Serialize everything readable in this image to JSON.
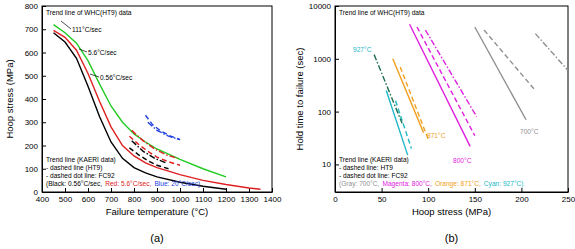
{
  "chart_data": [
    {
      "type": "line",
      "title": "(a)",
      "xlabel": "Failure temperature (°C)",
      "ylabel": "Hoop stress (MPa)",
      "xlim": [
        400,
        1400
      ],
      "ylim": [
        0,
        800
      ],
      "xticks": [
        400,
        500,
        600,
        700,
        800,
        900,
        1000,
        1100,
        1200,
        1300,
        1400
      ],
      "yticks": [
        0,
        100,
        200,
        300,
        400,
        500,
        600,
        700,
        800
      ],
      "grid": false,
      "series": [
        {
          "color": "#22cc22",
          "line_style": "solid",
          "x": [
            450,
            500,
            550,
            600,
            650,
            700,
            750,
            800,
            850,
            900,
            1000,
            1100,
            1200
          ],
          "values": [
            720,
            685,
            640,
            565,
            465,
            370,
            300,
            250,
            215,
            185,
            140,
            100,
            65
          ]
        },
        {
          "color": "#e02020",
          "line_style": "solid",
          "x": [
            450,
            500,
            550,
            600,
            650,
            700,
            750,
            800,
            850,
            900,
            1000,
            1100,
            1200,
            1300,
            1350
          ],
          "values": [
            695,
            665,
            610,
            510,
            390,
            280,
            200,
            155,
            125,
            105,
            75,
            50,
            32,
            17,
            12
          ]
        },
        {
          "color": "#000000",
          "line_style": "solid",
          "x": [
            450,
            500,
            550,
            600,
            650,
            700,
            750,
            800,
            850,
            900,
            1000,
            1100,
            1200
          ],
          "values": [
            685,
            645,
            575,
            455,
            325,
            215,
            145,
            105,
            82,
            65,
            42,
            25,
            12
          ]
        },
        {
          "color": "#000000",
          "line_style": "dashed",
          "x": [
            780,
            820,
            860,
            900,
            950
          ],
          "values": [
            190,
            160,
            135,
            115,
            100
          ]
        },
        {
          "color": "#e02020",
          "line_style": "dashed",
          "x": [
            780,
            820,
            860,
            900,
            950,
            1000
          ],
          "values": [
            240,
            205,
            175,
            150,
            130,
            115
          ]
        },
        {
          "color": "#2040e0",
          "line_style": "dashed",
          "x": [
            850,
            880,
            920,
            960,
            1000
          ],
          "values": [
            330,
            290,
            260,
            240,
            225
          ]
        },
        {
          "color": "#000000",
          "line_style": "dashdot",
          "x": [
            790,
            840,
            890,
            940
          ],
          "values": [
            220,
            175,
            145,
            125
          ]
        },
        {
          "color": "#e02020",
          "line_style": "dashdot",
          "x": [
            790,
            840,
            890,
            940,
            990
          ],
          "values": [
            265,
            220,
            185,
            160,
            145
          ]
        },
        {
          "color": "#2040e0",
          "line_style": "dashdot",
          "x": [
            860,
            900,
            950,
            1000
          ],
          "values": [
            300,
            265,
            240,
            225
          ]
        }
      ],
      "annotations": [
        {
          "text": "Trend line of WHC(HT9) data",
          "color": "#000000"
        },
        {
          "text": "111°C/sec",
          "color": "#000000"
        },
        {
          "text": "5.6°C/sec",
          "color": "#000000"
        },
        {
          "text": "0.56°C/sec",
          "color": "#000000"
        },
        {
          "text": "Trend line (KAERI data)",
          "color": "#000000"
        },
        {
          "text": "- dashed line (HT9)",
          "color": "#000000"
        },
        {
          "text": "- dashed dot line: FC92",
          "color": "#000000"
        },
        {
          "text": "(Black: 0.56°C/sec,",
          "color": "#000000"
        },
        {
          "text": "Red: 5.6°C/sec,",
          "color": "#e02020"
        },
        {
          "text": "Blue: 20°C/sec)",
          "color": "#2040e0"
        }
      ]
    },
    {
      "type": "line",
      "title": "(b)",
      "xlabel": "Hoop stress (MPa)",
      "ylabel": "Hold time to failure (sec)",
      "xlim": [
        0,
        250
      ],
      "ylim": [
        3,
        10000
      ],
      "xticks": [
        0,
        50,
        100,
        150,
        200,
        250
      ],
      "yticks": [
        10,
        100,
        1000,
        10000
      ],
      "log": "y",
      "grid": false,
      "series": [
        {
          "color": "#909090",
          "line_style": "solid",
          "x": [
            150,
            205
          ],
          "values": [
            4000,
            70
          ]
        },
        {
          "color": "#909090",
          "line_style": "dashed",
          "x": [
            160,
            215
          ],
          "values": [
            3500,
            250
          ]
        },
        {
          "color": "#909090",
          "line_style": "dashdot",
          "x": [
            215,
            250
          ],
          "values": [
            3000,
            600
          ]
        },
        {
          "color": "#e020e0",
          "line_style": "solid",
          "x": [
            80,
            145
          ],
          "values": [
            4500,
            22
          ]
        },
        {
          "color": "#e020e0",
          "line_style": "dashed",
          "x": [
            88,
            150
          ],
          "values": [
            4000,
            35
          ]
        },
        {
          "color": "#e020e0",
          "line_style": "dashdot",
          "x": [
            97,
            152
          ],
          "values": [
            3500,
            80
          ]
        },
        {
          "color": "#f0a020",
          "line_style": "solid",
          "x": [
            62,
            95
          ],
          "values": [
            1000,
            40
          ]
        },
        {
          "color": "#f0a020",
          "line_style": "dashed",
          "x": [
            70,
            100
          ],
          "values": [
            700,
            30
          ]
        },
        {
          "color": "#20b8c8",
          "line_style": "solid",
          "x": [
            55,
            78
          ],
          "values": [
            250,
            15
          ]
        },
        {
          "color": "#20b8c8",
          "line_style": "dashed",
          "x": [
            65,
            82
          ],
          "values": [
            160,
            20
          ]
        },
        {
          "color": "#207050",
          "line_style": "dashdot",
          "x": [
            42,
            72
          ],
          "values": [
            1200,
            60
          ]
        }
      ],
      "annotations": [
        {
          "text": "Trend line of WHC(HT9) data",
          "color": "#000000"
        },
        {
          "text": "927°C",
          "color": "#20b8c8"
        },
        {
          "text": "871°C",
          "color": "#f0a020"
        },
        {
          "text": "800°C",
          "color": "#e020e0"
        },
        {
          "text": "700°C",
          "color": "#909090"
        },
        {
          "text": "Trend line (KAERI data)",
          "color": "#000000"
        },
        {
          "text": "- dashed line: HT9",
          "color": "#000000"
        },
        {
          "text": "- dashed dot line: FC92",
          "color": "#000000"
        },
        {
          "text": "(Gray: 700°C,",
          "color": "#909090"
        },
        {
          "text": "Magenta: 800°C,",
          "color": "#e020e0"
        },
        {
          "text": "Orange: 871°C,",
          "color": "#f0a020"
        },
        {
          "text": "Cyan: 927°C)",
          "color": "#20b8c8"
        }
      ]
    }
  ]
}
